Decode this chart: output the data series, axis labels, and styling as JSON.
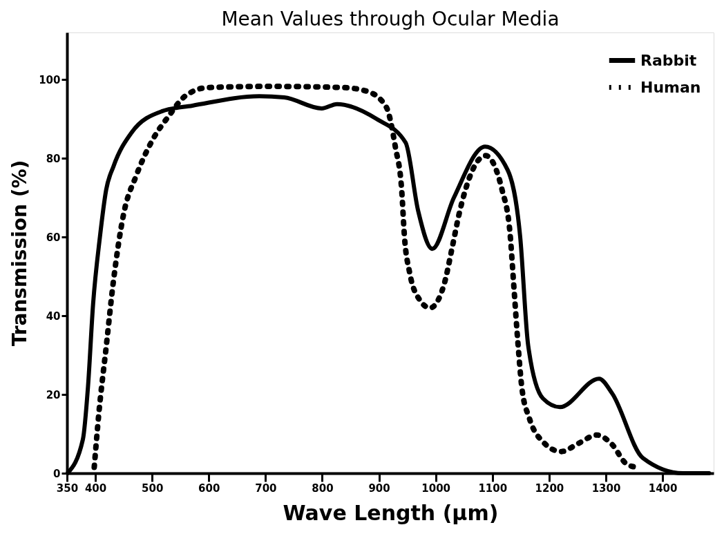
{
  "chart_data": {
    "type": "line",
    "title": "Mean Values through Ocular Media",
    "xlabel": "Wave Length (μm)",
    "ylabel": "Transmission (%)",
    "xlim": [
      350,
      1490
    ],
    "ylim": [
      0,
      112
    ],
    "xticks": [
      350,
      400,
      500,
      600,
      700,
      800,
      900,
      1000,
      1100,
      1200,
      1300,
      1400
    ],
    "yticks": [
      0,
      20,
      40,
      60,
      80,
      100
    ],
    "grid": false,
    "legend": "top right",
    "series": [
      {
        "name": "Rabbit",
        "color": "#000000",
        "line_style": "solid",
        "x": [
          351,
          378,
          387,
          396,
          408,
          419,
          432,
          464,
          518,
          571,
          689,
          733,
          799,
          826,
          896,
          947,
          969,
          994,
          1032,
          1087,
          1127,
          1149,
          1163,
          1189,
          1219,
          1288,
          1311,
          1365,
          1436,
          1482
        ],
        "values": [
          0,
          8.6,
          22,
          43,
          60,
          72,
          78,
          86.6,
          92,
          93.4,
          95.8,
          95.5,
          92.7,
          93.8,
          90,
          84,
          66.7,
          57,
          70,
          83,
          77,
          60,
          32.5,
          19,
          16.8,
          24,
          20.3,
          3.9,
          0,
          0
        ]
      },
      {
        "name": "Human",
        "color": "#000000",
        "line_style": "dotted",
        "x": [
          398,
          406,
          419,
          432,
          450,
          472,
          502,
          529,
          558,
          598,
          707,
          837,
          880,
          913,
          929,
          940,
          945,
          954,
          972,
          990,
          1014,
          1030,
          1041,
          1088,
          1117,
          1131,
          1138,
          1145,
          1152,
          1165,
          1189,
          1221,
          1252,
          1284,
          1311,
          1336,
          1354
        ],
        "values": [
          1.5,
          15,
          32,
          49,
          66,
          75.6,
          85,
          90.7,
          95.8,
          98,
          98.3,
          98,
          97,
          93,
          82.8,
          72,
          60,
          51,
          44,
          42,
          47.6,
          58,
          65.7,
          80.7,
          72,
          61,
          47,
          33,
          21.6,
          14,
          8,
          5.5,
          7.6,
          9.7,
          7.3,
          2.4,
          1.5
        ]
      }
    ]
  }
}
